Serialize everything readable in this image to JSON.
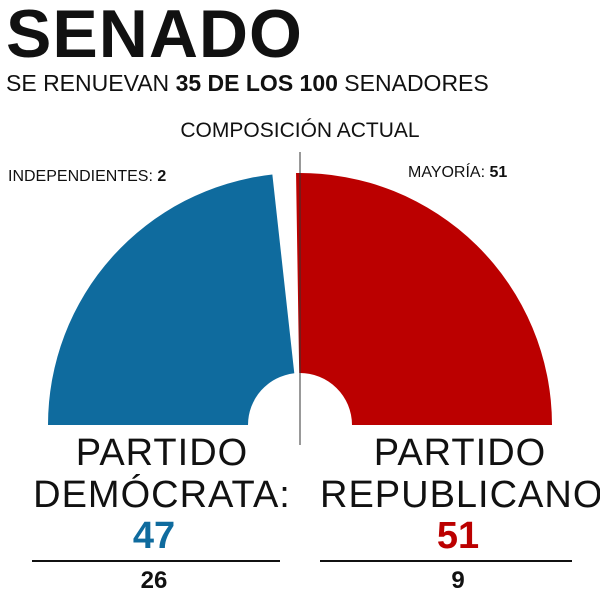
{
  "header": {
    "title": "SENADO",
    "subtitle_pre": "SE RENUEVAN ",
    "subtitle_bold": "35 DE LOS 100",
    "subtitle_post": " SENADORES"
  },
  "labels": {
    "independents_text": "INDEPENDIENTES: ",
    "independents_value": "2",
    "majority_text": "MAYORÍA: ",
    "majority_value": "51"
  },
  "parties": {
    "dem": {
      "line1": "PARTIDO",
      "line2": "DEMÓCRATA:",
      "seats": "47",
      "renew": "26",
      "color": "#0f6b9e"
    },
    "rep": {
      "line1": "PARTIDO",
      "line2": "REPUBLICANO:",
      "seats": "51",
      "renew": "9",
      "color": "#bb0000"
    }
  },
  "chart_data": {
    "type": "pie",
    "subtype": "hemicycle",
    "title": "COMPOSICIÓN ACTUAL",
    "total": 100,
    "majority": 51,
    "series": [
      {
        "name": "PARTIDO DEMÓCRATA",
        "value": 47,
        "color": "#0f6b9e"
      },
      {
        "name": "INDEPENDIENTES",
        "value": 2,
        "color": "#ffffff"
      },
      {
        "name": "PARTIDO REPUBLICANO",
        "value": 51,
        "color": "#bb0000"
      }
    ]
  }
}
